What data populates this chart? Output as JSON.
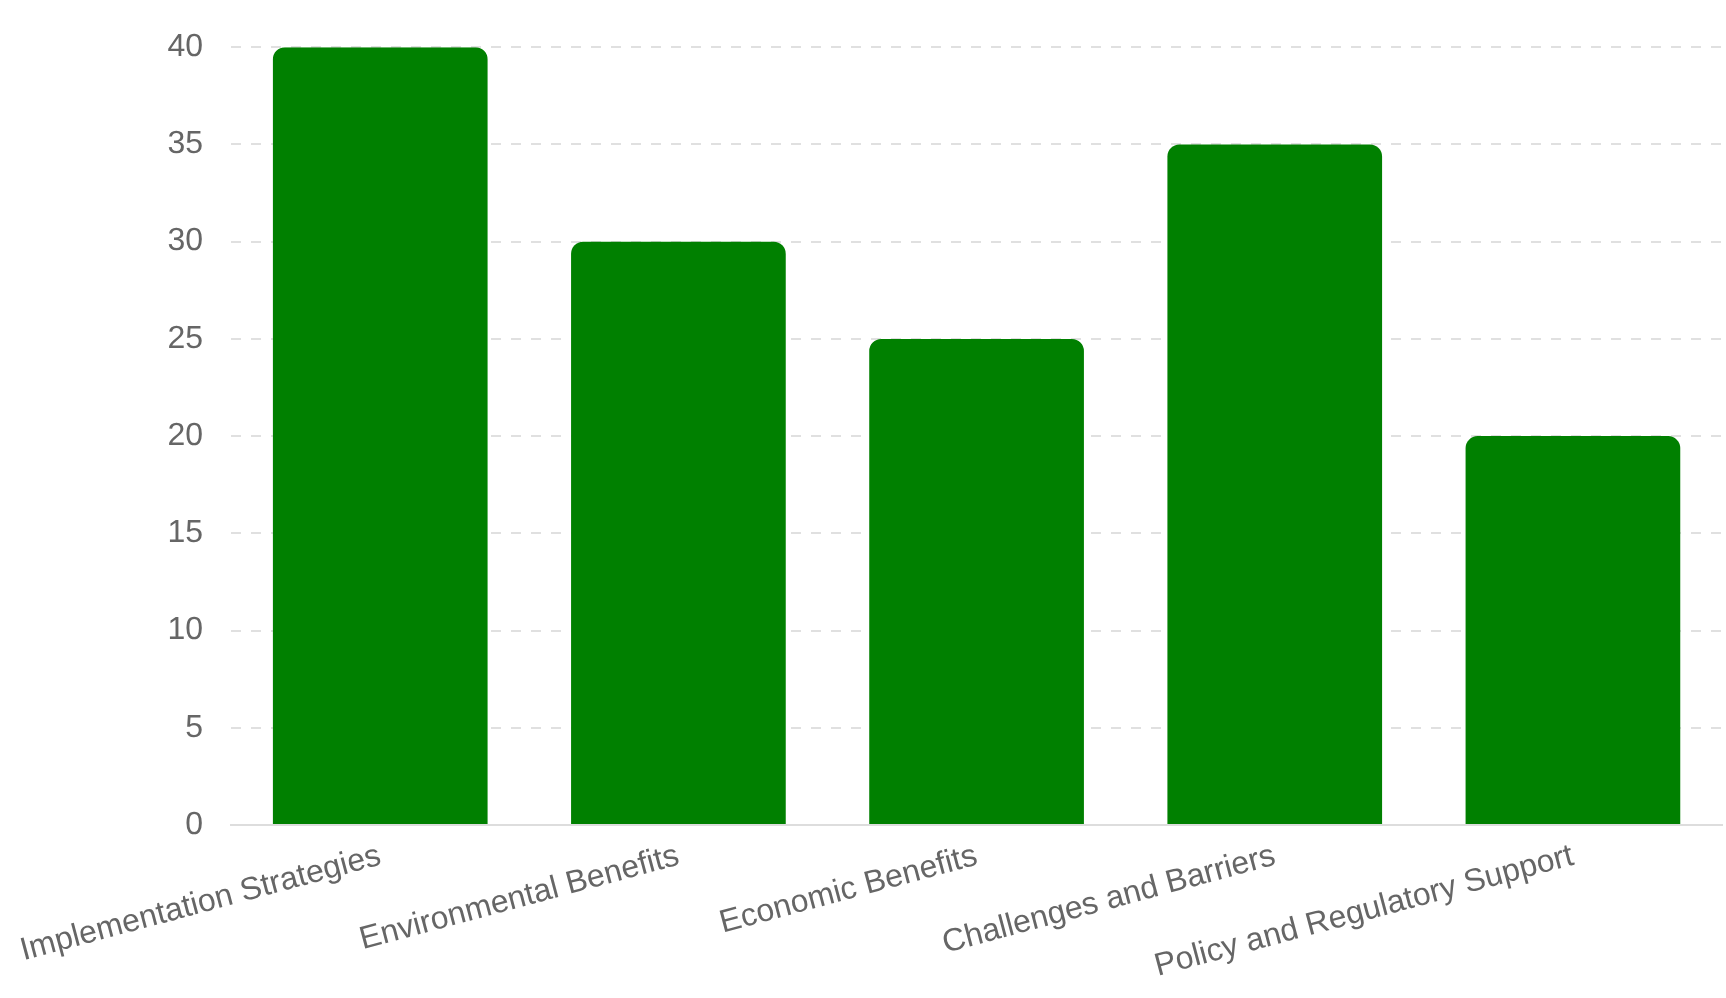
{
  "chart_data": {
    "type": "bar",
    "categories": [
      "Implementation Strategies",
      "Environmental Benefits",
      "Economic Benefits",
      "Challenges and Barriers",
      "Policy and Regulatory Support"
    ],
    "values": [
      40,
      30,
      25,
      35,
      20
    ],
    "color": "#008000",
    "ylim": [
      0,
      40
    ],
    "yticks": [
      0,
      5,
      10,
      15,
      20,
      25,
      30,
      35,
      40
    ],
    "grid": "y"
  }
}
